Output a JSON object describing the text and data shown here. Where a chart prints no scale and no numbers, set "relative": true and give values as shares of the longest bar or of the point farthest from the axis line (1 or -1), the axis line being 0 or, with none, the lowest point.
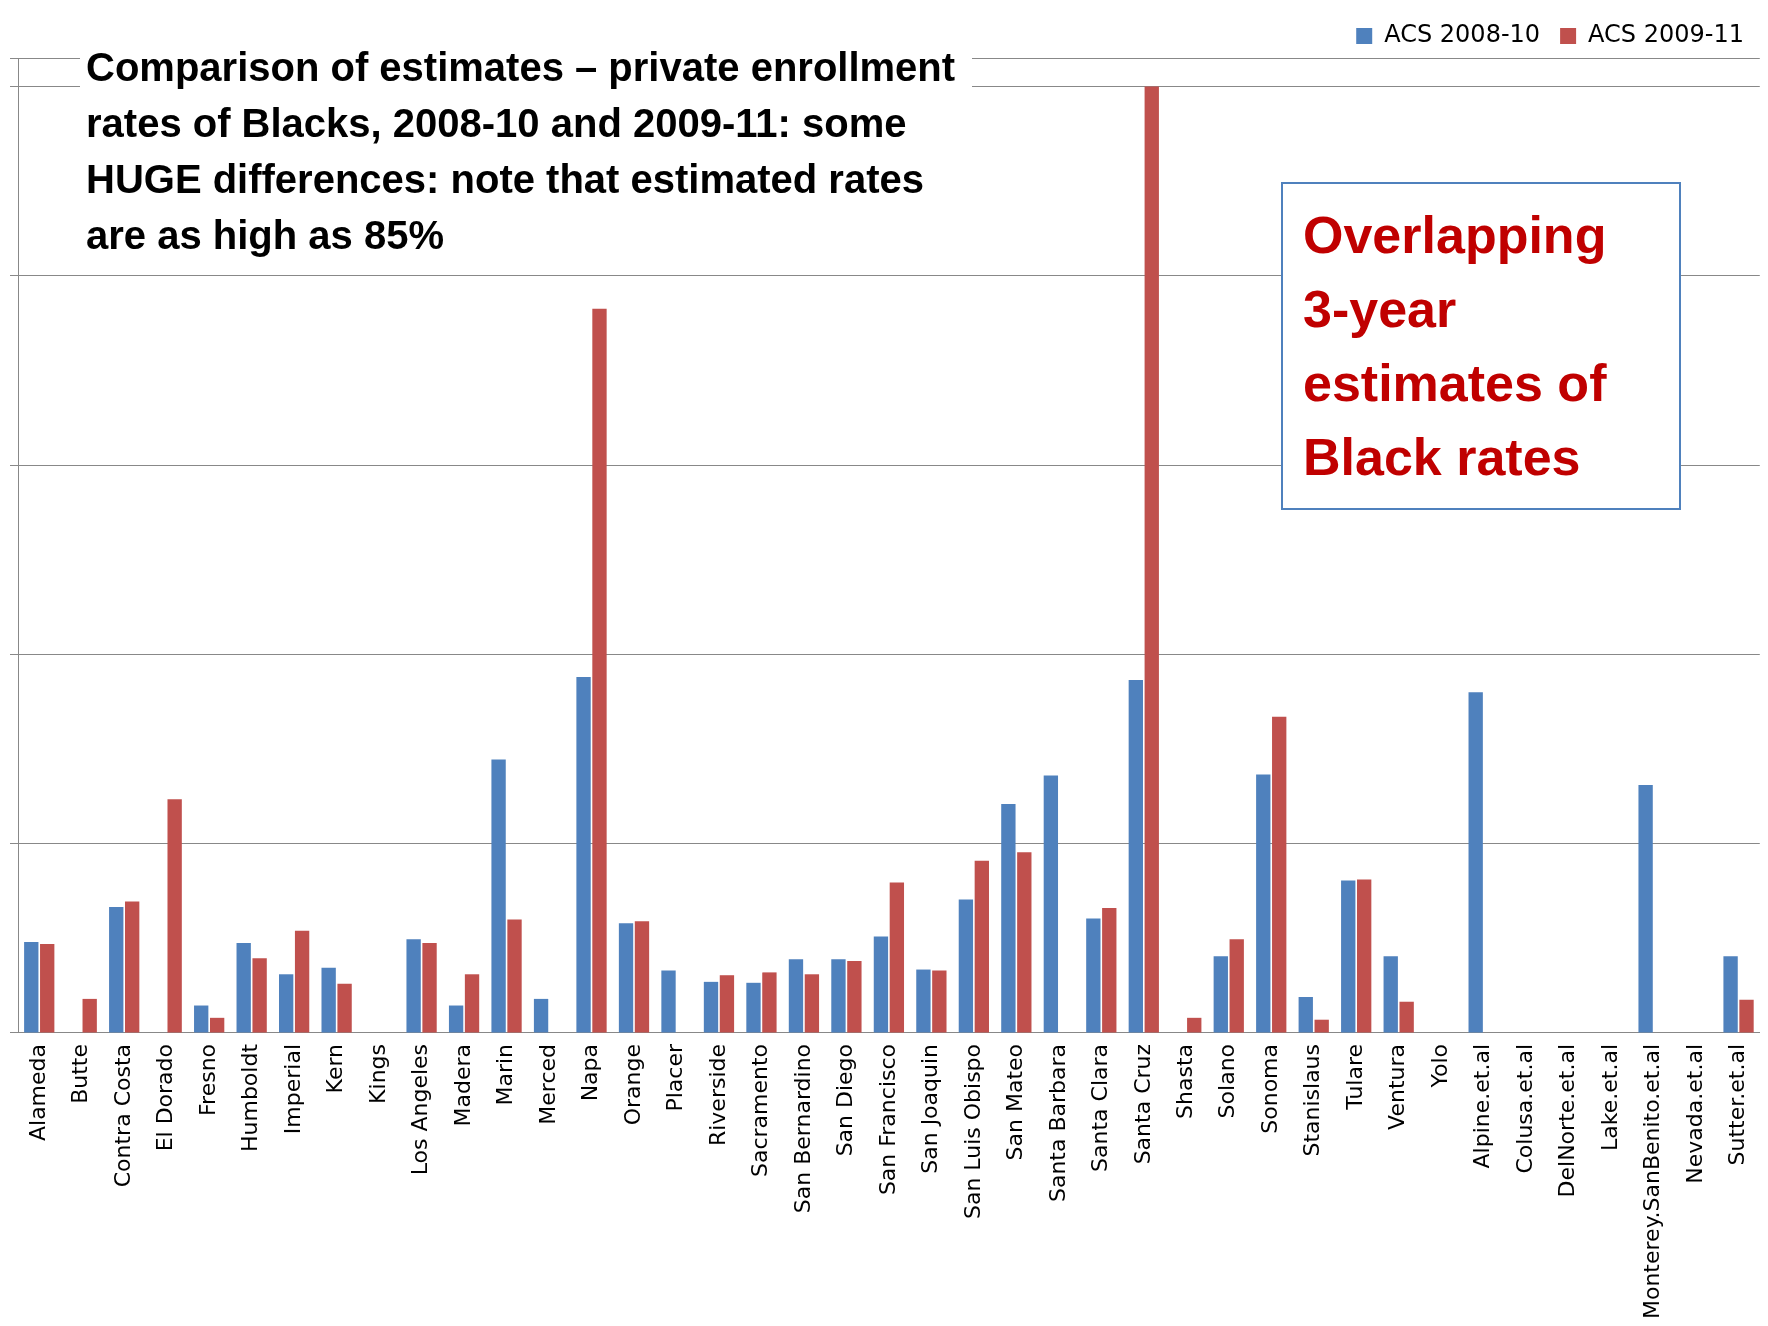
{
  "chart_data": {
    "type": "bar",
    "title": "Comparison of estimates – private enrollment rates of Blacks, 2008-10 and 2009-11:  some HUGE differences: note that estimated rates are as high as 85%",
    "categories": [
      "Alameda",
      "Butte",
      "Contra Costa",
      "El Dorado",
      "Fresno",
      "Humboldt",
      "Imperial",
      "Kern",
      "Kings",
      "Los Angeles",
      "Madera",
      "Marin",
      "Merced",
      "Napa",
      "Orange",
      "Placer",
      "Riverside",
      "Sacramento",
      "San Bernardino",
      "San Diego",
      "San Francisco",
      "San Joaquin",
      "San Luis Obispo",
      "San Mateo",
      "Santa Barbara",
      "Santa Clara",
      "Santa Cruz",
      "Shasta",
      "Solano",
      "Sonoma",
      "Stanislaus",
      "Tulare",
      "Ventura",
      "Yolo",
      "Alpine.et.al",
      "Colusa.et.al",
      "DelNorte.et.al",
      "Lake.et.al",
      "Monterey.SanBenito.et.al",
      "Nevada.et.al",
      "Sutter.et.al"
    ],
    "series": [
      {
        "name": "ACS 2008-10",
        "color": "#4f81bd",
        "values": [
          0.096,
          0,
          0.133,
          0,
          0.029,
          0.095,
          0.062,
          0.069,
          0,
          0.099,
          0.029,
          0.289,
          0.036,
          0.376,
          0.116,
          0.066,
          0.054,
          0.053,
          0.078,
          0.078,
          0.102,
          0.067,
          0.141,
          0.242,
          0.272,
          0.121,
          0.373,
          0,
          0.081,
          0.273,
          0.038,
          0.161,
          0.081,
          0,
          0.36,
          0,
          0,
          0,
          0.262,
          0,
          0.081
        ]
      },
      {
        "name": "ACS 2009-11",
        "color": "#c0504d",
        "values": [
          0.094,
          0.036,
          0.139,
          0.247,
          0.016,
          0.079,
          0.108,
          0.052,
          0,
          0.095,
          0.062,
          0.12,
          0,
          0.765,
          0.118,
          0,
          0.061,
          0.064,
          0.062,
          0.076,
          0.159,
          0.066,
          0.182,
          0.191,
          0,
          0.132,
          1,
          0.016,
          0.099,
          0.334,
          0.014,
          0.162,
          0.033,
          0,
          0,
          0,
          0,
          0,
          0,
          0,
          0.035
        ]
      }
    ],
    "relative": true,
    "grid": "y",
    "legend": "top right",
    "annotations": [
      "Overlapping 3-year estimates of Black rates"
    ]
  }
}
